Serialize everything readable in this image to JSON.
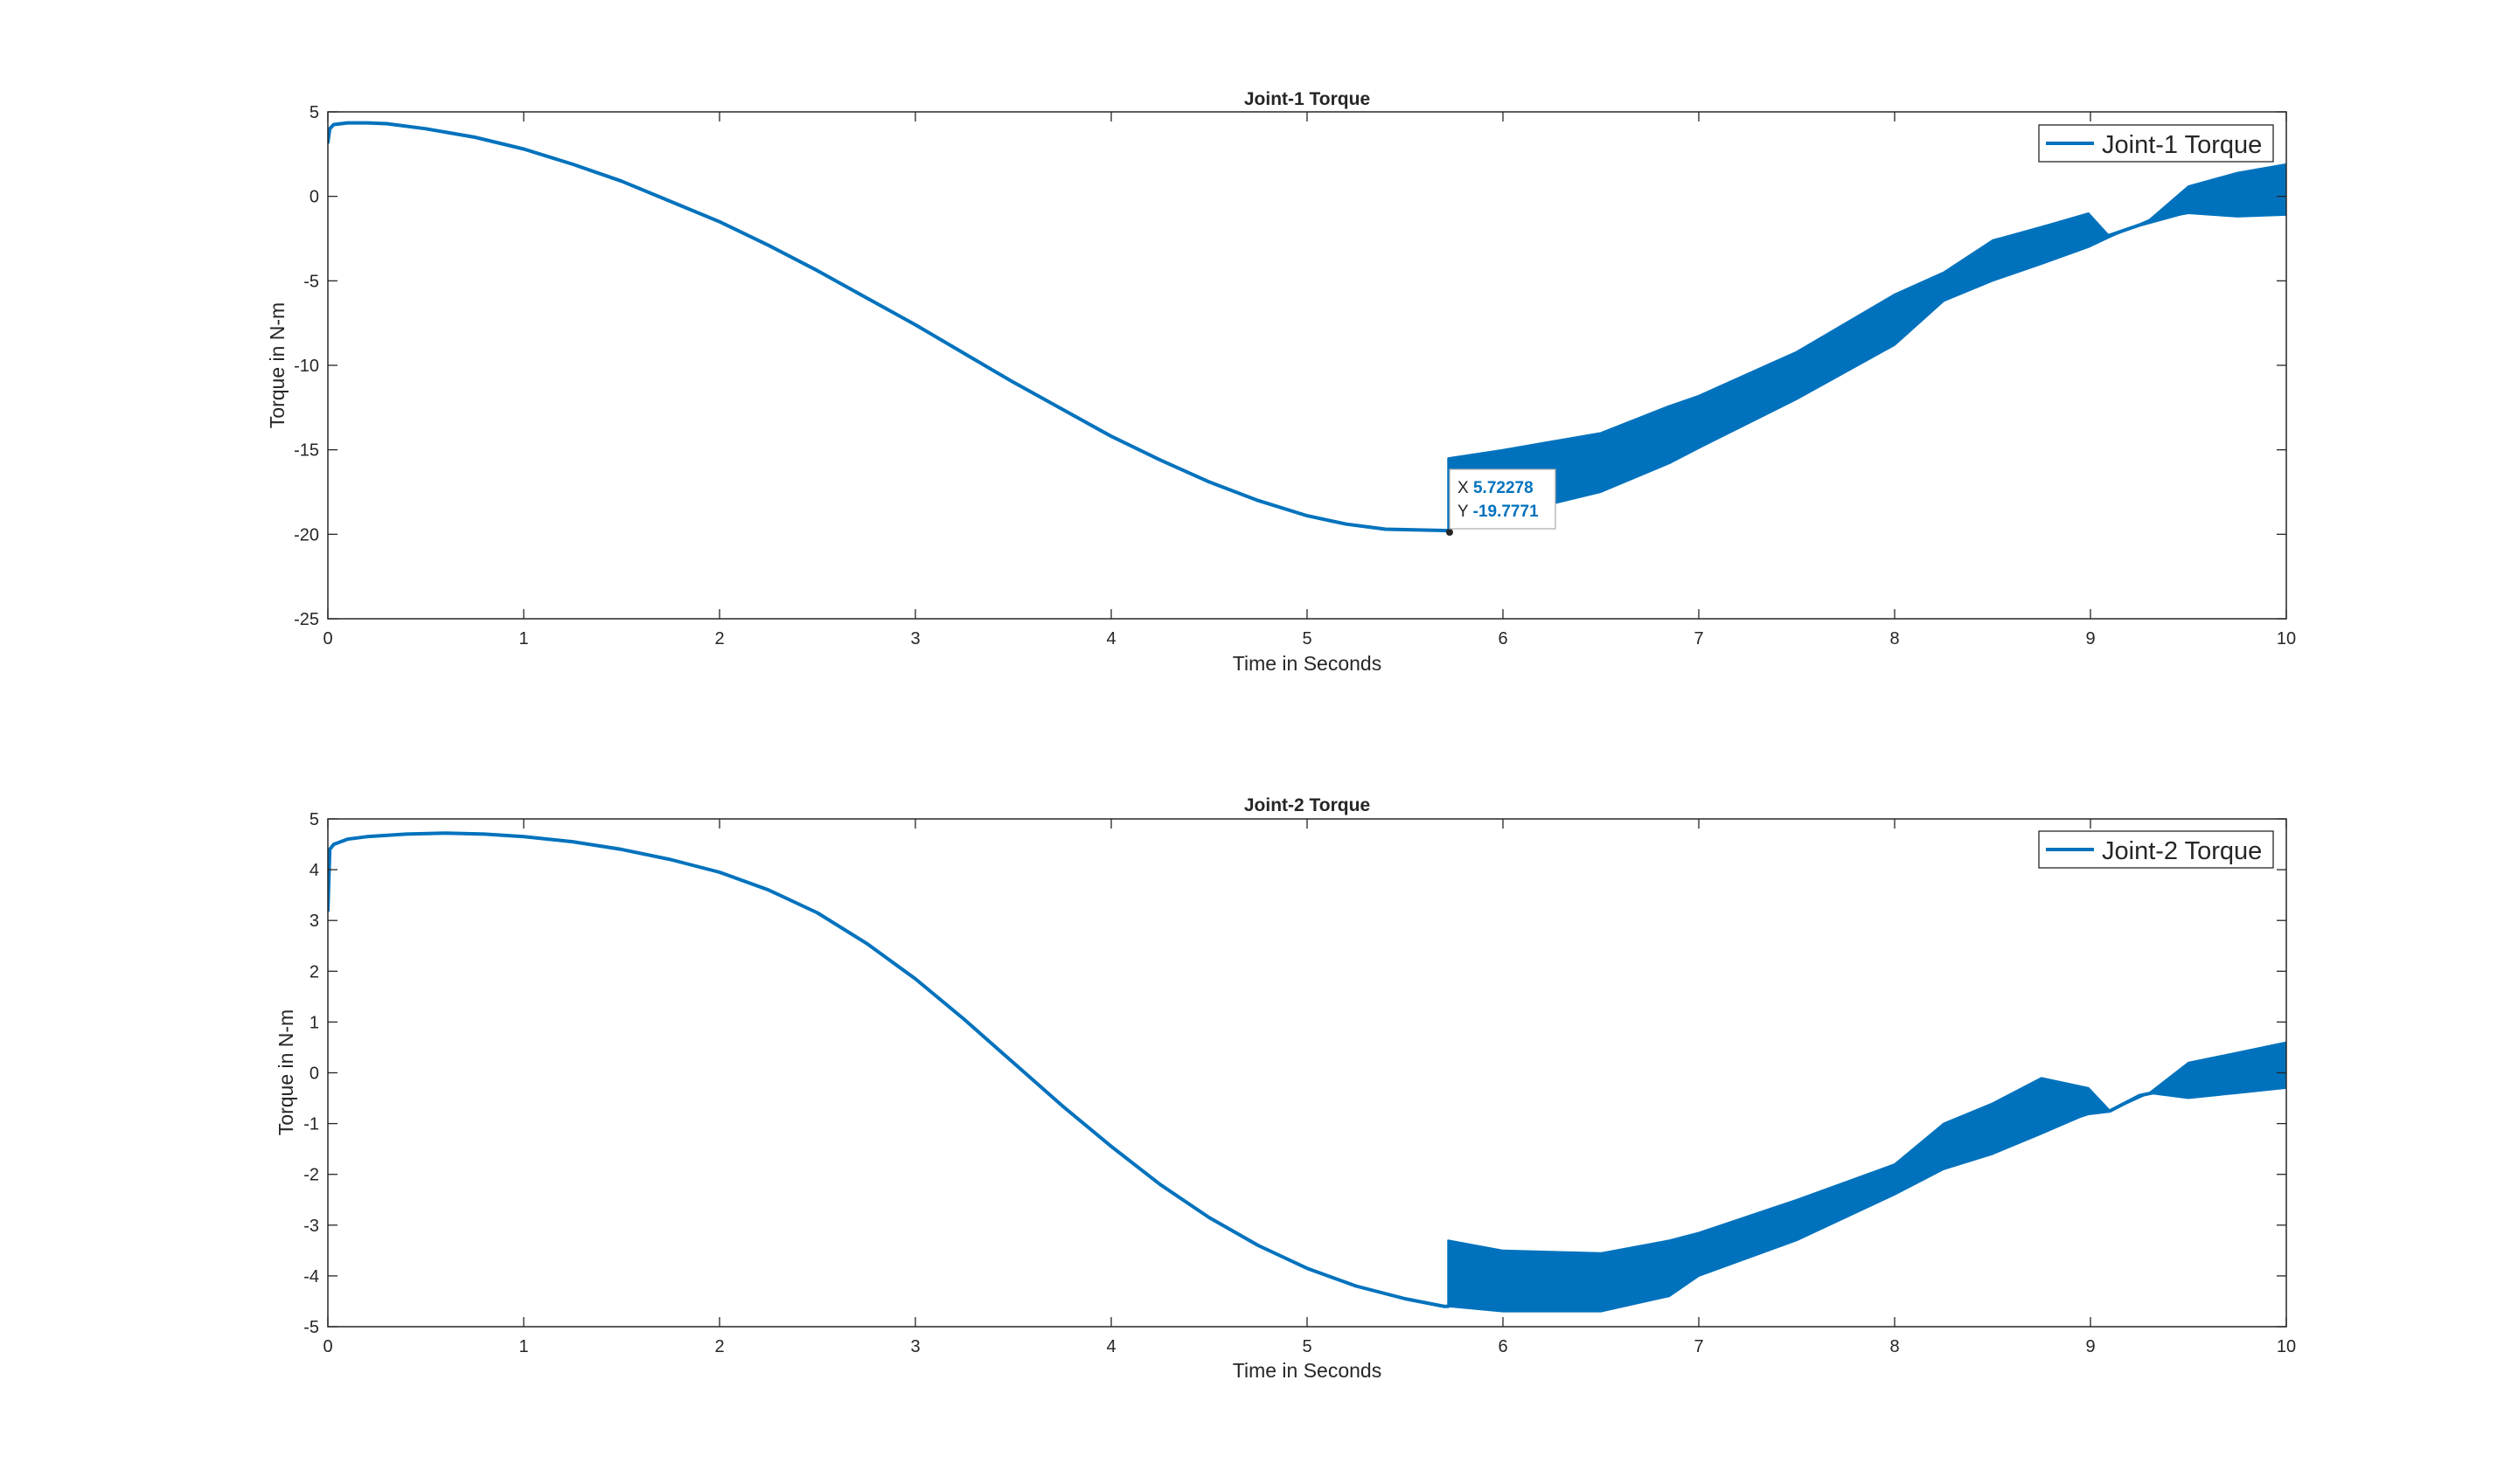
{
  "chart_data": [
    {
      "type": "line",
      "title": "Joint-1 Torque",
      "xlabel": "Time in Seconds",
      "ylabel": "Torque in N-m",
      "xlim": [
        0,
        10
      ],
      "ylim": [
        -25,
        5
      ],
      "xticks": [
        0,
        1,
        2,
        3,
        4,
        5,
        6,
        7,
        8,
        9,
        10
      ],
      "yticks": [
        -25,
        -20,
        -15,
        -10,
        -5,
        0,
        5
      ],
      "legend_position": "top-right",
      "grid": false,
      "series": [
        {
          "name": "Joint-1 Torque",
          "color": "#0072BD",
          "x": [
            0,
            0.01,
            0.03,
            0.1,
            0.2,
            0.3,
            0.5,
            0.75,
            1,
            1.25,
            1.5,
            1.75,
            2,
            2.25,
            2.5,
            2.75,
            3,
            3.25,
            3.5,
            3.75,
            4,
            4.25,
            4.5,
            4.75,
            5,
            5.2,
            5.4,
            5.6,
            5.72,
            5.8,
            6,
            6.25,
            6.5,
            6.75,
            6.9,
            7,
            7.25,
            7.5,
            7.75,
            8,
            8.25,
            8.5,
            8.75,
            8.99,
            9.1,
            9.25,
            9.5,
            9.75,
            10
          ],
          "y": [
            3.2,
            4.0,
            4.25,
            4.35,
            4.35,
            4.3,
            4.0,
            3.5,
            2.8,
            1.9,
            0.9,
            -0.3,
            -1.5,
            -2.9,
            -4.4,
            -6.0,
            -7.6,
            -9.3,
            -11.0,
            -12.6,
            -14.2,
            -15.6,
            -16.9,
            -18.0,
            -18.9,
            -19.4,
            -19.7,
            -19.75,
            -19.78,
            -18.6,
            -17.6,
            -16.8,
            -15.9,
            -14.6,
            -13.4,
            -13.0,
            -11.4,
            -9.8,
            -8.3,
            -6.6,
            -4.9,
            -3.8,
            -3.2,
            -2.5,
            -2.3,
            -1.7,
            -0.9,
            -0.4,
            0.1
          ],
          "band_upper": {
            "x": [
              5.72,
              6.0,
              6.5,
              6.85,
              7.0,
              7.5,
              8.0,
              8.25,
              8.5,
              8.75,
              8.99,
              9.1,
              9.3,
              9.5,
              9.75,
              10
            ],
            "y": [
              -15.5,
              -15.0,
              -14.0,
              -12.4,
              -11.8,
              -9.2,
              -5.8,
              -4.5,
              -2.6,
              -1.8,
              -1.0,
              -2.4,
              -1.4,
              0.6,
              1.4,
              1.9
            ]
          },
          "band_lower": {
            "x": [
              5.72,
              6.0,
              6.5,
              6.85,
              7.0,
              7.5,
              8.0,
              8.25,
              8.5,
              8.75,
              8.99,
              9.1,
              9.3,
              9.5,
              9.75,
              10
            ],
            "y": [
              -19.7,
              -18.9,
              -17.5,
              -15.8,
              -14.9,
              -12.0,
              -8.8,
              -6.2,
              -5.0,
              -4.0,
              -3.0,
              -2.4,
              -1.4,
              -1.0,
              -1.2,
              -1.1
            ]
          }
        }
      ],
      "datatip": {
        "x_label": "X",
        "y_label": "Y",
        "x": "5.72278",
        "y": "-19.7771",
        "x_value": 5.72278,
        "y_value": -19.7771
      }
    },
    {
      "type": "line",
      "title": "Joint-2 Torque",
      "xlabel": "Time in Seconds",
      "ylabel": "Torque in N-m",
      "xlim": [
        0,
        10
      ],
      "ylim": [
        -5,
        5
      ],
      "xticks": [
        0,
        1,
        2,
        3,
        4,
        5,
        6,
        7,
        8,
        9,
        10
      ],
      "yticks": [
        -5,
        -4,
        -3,
        -2,
        -1,
        0,
        1,
        2,
        3,
        4,
        5
      ],
      "legend_position": "top-right",
      "grid": false,
      "series": [
        {
          "name": "Joint-2 Torque",
          "color": "#0072BD",
          "x": [
            0,
            0.01,
            0.03,
            0.1,
            0.2,
            0.4,
            0.6,
            0.8,
            1,
            1.25,
            1.5,
            1.75,
            2,
            2.25,
            2.5,
            2.75,
            3,
            3.25,
            3.5,
            3.75,
            4,
            4.25,
            4.5,
            4.75,
            5,
            5.25,
            5.5,
            5.7,
            5.72,
            5.8,
            6,
            6.25,
            6.5,
            6.85,
            7,
            7.25,
            7.5,
            7.75,
            8,
            8.25,
            8.5,
            8.75,
            8.99,
            9.1,
            9.25,
            9.5,
            9.75,
            10
          ],
          "y": [
            3.2,
            4.4,
            4.5,
            4.6,
            4.65,
            4.7,
            4.72,
            4.7,
            4.65,
            4.55,
            4.4,
            4.2,
            3.95,
            3.6,
            3.15,
            2.55,
            1.85,
            1.05,
            0.2,
            -0.65,
            -1.45,
            -2.2,
            -2.85,
            -3.4,
            -3.85,
            -4.2,
            -4.45,
            -4.6,
            -4.6,
            -4.2,
            -4.1,
            -4.0,
            -3.95,
            -3.75,
            -3.4,
            -3.05,
            -2.7,
            -2.35,
            -2.0,
            -1.7,
            -1.3,
            -1.1,
            -0.8,
            -0.75,
            -0.45,
            -0.25,
            -0.1,
            0.0
          ],
          "band_upper": {
            "x": [
              5.72,
              6.0,
              6.5,
              6.85,
              7.0,
              7.5,
              8.0,
              8.25,
              8.5,
              8.75,
              8.99,
              9.1,
              9.3,
              9.5,
              9.75,
              10
            ],
            "y": [
              -3.3,
              -3.5,
              -3.55,
              -3.3,
              -3.15,
              -2.5,
              -1.8,
              -1.0,
              -0.6,
              -0.1,
              -0.3,
              -0.75,
              -0.4,
              0.2,
              0.4,
              0.6
            ]
          },
          "band_lower": {
            "x": [
              5.72,
              6.0,
              6.5,
              6.85,
              7.0,
              7.5,
              8.0,
              8.25,
              8.5,
              8.75,
              8.99,
              9.1,
              9.3,
              9.5,
              9.75,
              10
            ],
            "y": [
              -4.6,
              -4.7,
              -4.7,
              -4.4,
              -4.0,
              -3.3,
              -2.4,
              -1.9,
              -1.6,
              -1.2,
              -0.8,
              -0.75,
              -0.4,
              -0.5,
              -0.4,
              -0.3
            ]
          }
        }
      ]
    }
  ]
}
